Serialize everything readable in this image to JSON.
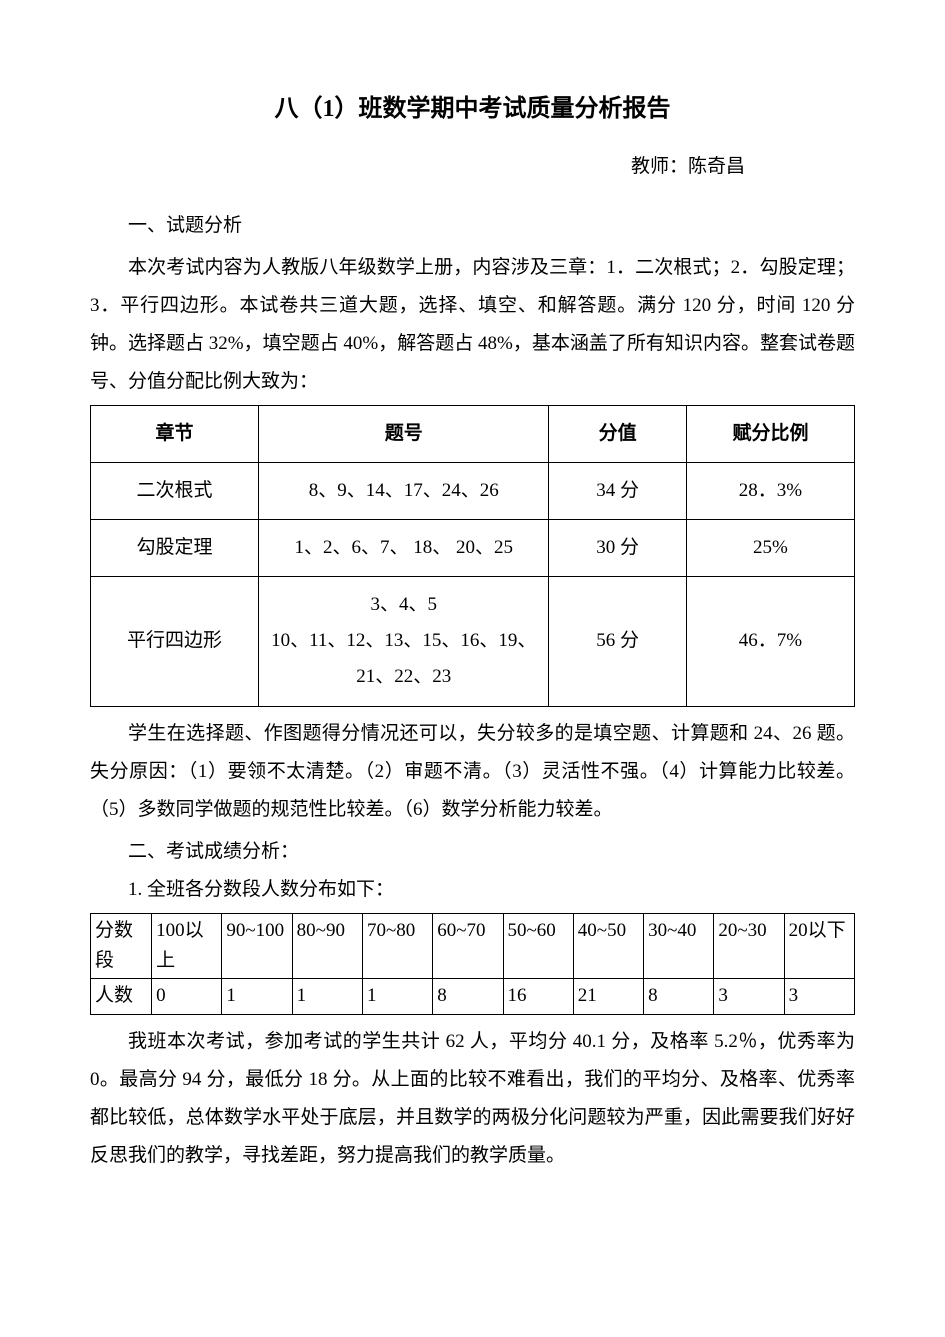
{
  "title": "八（1）班数学期中考试质量分析报告",
  "teacher_line": "教师：陈奇昌",
  "section1_heading": "一、试题分析",
  "section1_para": "本次考试内容为人教版八年级数学上册，内容涉及三章：1．二次根式；2．勾股定理；3．平行四边形。本试卷共三道大题，选择、填空、和解答题。满分 120 分，时间 120 分钟。选择题占 32%，填空题占 40%，解答题占 48%，基本涵盖了所有知识内容。整套试卷题号、分值分配比例大致为：",
  "chapter_table": {
    "headers": {
      "chapter": "章节",
      "qnum": "题号",
      "score": "分值",
      "ratio": "赋分比例"
    },
    "rows": [
      {
        "chapter": "二次根式",
        "qnum": "8、9、14、17、24、26",
        "score": "34 分",
        "ratio": "28．3%"
      },
      {
        "chapter": "勾股定理",
        "qnum": "1、2、6、7、 18、 20、25",
        "score": "30 分",
        "ratio": "25%"
      },
      {
        "chapter": "平行四边形",
        "qnum_line1": "3、4、5",
        "qnum_line2": "10、11、12、13、15、16、19、21、22、23",
        "score": "56 分",
        "ratio": "46．7%"
      }
    ]
  },
  "section1_para2": "学生在选择题、作图题得分情况还可以，失分较多的是填空题、计算题和 24、26 题。失分原因：（1）要领不太清楚。（2）审题不清。（3）灵活性不强。（4）计算能力比较差。（5）多数同学做题的规范性比较差。（6）数学分析能力较差。",
  "section2_heading": "二、考试成绩分析：",
  "section2_sub1": "1. 全班各分数段人数分布如下：",
  "score_table": {
    "row_label_1": "分数段",
    "row_label_2": "人数",
    "bands": [
      {
        "range": "100以上",
        "count": "0"
      },
      {
        "range": "90~100",
        "count": "1"
      },
      {
        "range": "80~90",
        "count": "1"
      },
      {
        "range": "70~80",
        "count": "1"
      },
      {
        "range": "60~70",
        "count": "8"
      },
      {
        "range": "50~60",
        "count": "16"
      },
      {
        "range": "40~50",
        "count": "21"
      },
      {
        "range": "30~40",
        "count": "8"
      },
      {
        "range": "20~30",
        "count": "3"
      },
      {
        "range": "20以下",
        "count": "3"
      }
    ]
  },
  "section2_para": "我班本次考试，参加考试的学生共计 62 人，平均分 40.1 分，及格率 5.2％，优秀率为 0。最高分 94 分，最低分 18 分。从上面的比较不难看出，我们的平均分、及格率、优秀率都比较低，总体数学水平处于底层，并且数学的两极分化问题较为严重，因此需要我们好好反思我们的教学，寻找差距，努力提高我们的教学质量。"
}
